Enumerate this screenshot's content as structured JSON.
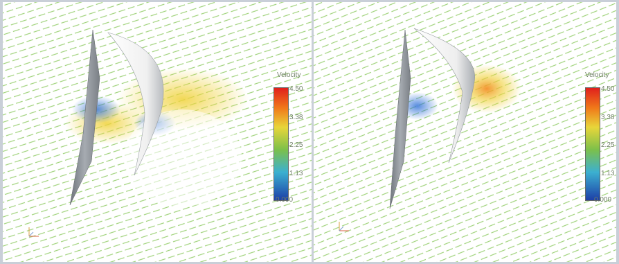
{
  "panels": [
    {
      "id": "left",
      "legend": {
        "title": "Velocity",
        "labels": [
          "4.50",
          "3.38",
          "2.25",
          "1.13",
          "0.000"
        ]
      }
    },
    {
      "id": "right",
      "legend": {
        "title": "Velocity",
        "labels": [
          "4.50",
          "3.38",
          "2.25",
          "1.13",
          "0.000"
        ]
      }
    }
  ],
  "colors": {
    "background": "#c9cfd8",
    "panel": "#ffffff",
    "field_green": "#86c45f",
    "surface_gray": "#8f959c",
    "surface_white": "#f4f4f4"
  }
}
